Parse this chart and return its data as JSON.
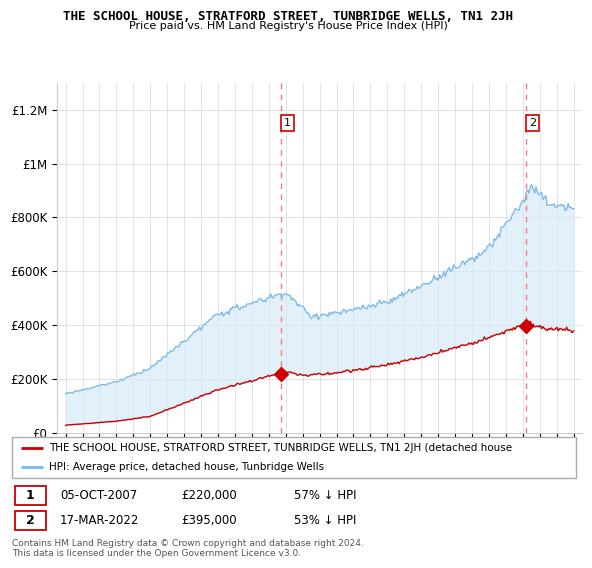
{
  "title": "THE SCHOOL HOUSE, STRATFORD STREET, TUNBRIDGE WELLS, TN1 2JH",
  "subtitle": "Price paid vs. HM Land Registry's House Price Index (HPI)",
  "legend_line1": "THE SCHOOL HOUSE, STRATFORD STREET, TUNBRIDGE WELLS, TN1 2JH (detached house",
  "legend_line2": "HPI: Average price, detached house, Tunbridge Wells",
  "annotation1_label": "1",
  "annotation1_date": "05-OCT-2007",
  "annotation1_price": "£220,000",
  "annotation1_hpi": "57% ↓ HPI",
  "annotation2_label": "2",
  "annotation2_date": "17-MAR-2022",
  "annotation2_price": "£395,000",
  "annotation2_hpi": "53% ↓ HPI",
  "footer": "Contains HM Land Registry data © Crown copyright and database right 2024.\nThis data is licensed under the Open Government Licence v3.0.",
  "hpi_color": "#7ab8e8",
  "hpi_fill_color": "#d6eaf8",
  "price_color": "#cc0000",
  "dashed_line_color": "#ff7777",
  "ylim": [
    0,
    1300000
  ],
  "yticks": [
    0,
    200000,
    400000,
    600000,
    800000,
    1000000,
    1200000
  ],
  "ytick_labels": [
    "£0",
    "£200K",
    "£400K",
    "£600K",
    "£800K",
    "£1M",
    "£1.2M"
  ],
  "sale1_x": 2007.75,
  "sale1_y": 220000,
  "sale2_x": 2022.2,
  "sale2_y": 395000,
  "xmin": 1995,
  "xmax": 2025
}
